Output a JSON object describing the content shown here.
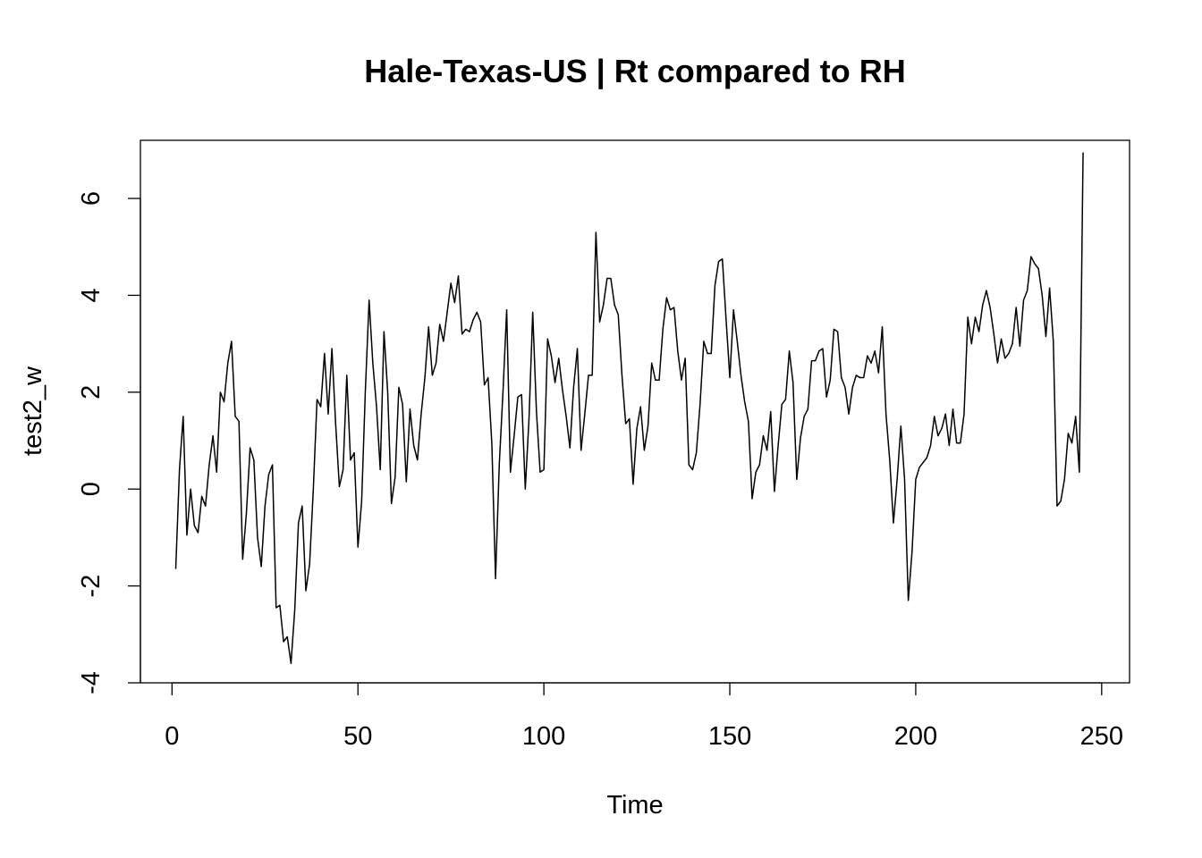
{
  "chart_data": {
    "type": "line",
    "title": "Hale-Texas-US | Rt compared to RH",
    "xlabel": "Time",
    "ylabel": "test2_w",
    "xlim": [
      -8.5,
      257.5
    ],
    "ylim": [
      -4,
      7.2
    ],
    "xticks": [
      0,
      50,
      100,
      150,
      200,
      250
    ],
    "yticks": [
      -4,
      -2,
      0,
      2,
      4,
      6
    ],
    "grid": false,
    "series": [
      {
        "x_start": 1,
        "x_step": 1,
        "values": [
          -1.65,
          0.4,
          1.5,
          -0.95,
          0.0,
          -0.75,
          -0.9,
          -0.15,
          -0.35,
          0.5,
          1.1,
          0.35,
          2.0,
          1.8,
          2.6,
          3.05,
          1.5,
          1.4,
          -1.45,
          -0.5,
          0.85,
          0.6,
          -1.0,
          -1.6,
          -0.35,
          0.3,
          0.5,
          -2.45,
          -2.4,
          -3.15,
          -3.05,
          -3.6,
          -2.5,
          -0.7,
          -0.35,
          -2.1,
          -1.55,
          0.0,
          1.85,
          1.7,
          2.8,
          1.55,
          2.9,
          1.35,
          0.05,
          0.4,
          2.35,
          0.6,
          0.75,
          -1.2,
          -0.25,
          2.05,
          3.9,
          2.6,
          1.7,
          0.4,
          3.25,
          2.0,
          -0.3,
          0.25,
          2.1,
          1.75,
          0.15,
          1.65,
          0.9,
          0.6,
          1.55,
          2.3,
          3.35,
          2.35,
          2.6,
          3.4,
          3.05,
          3.65,
          4.25,
          3.85,
          4.4,
          3.2,
          3.3,
          3.25,
          3.5,
          3.65,
          3.45,
          2.15,
          2.3,
          0.95,
          -1.85,
          0.5,
          2.0,
          3.7,
          0.35,
          1.1,
          1.9,
          1.95,
          0.0,
          1.45,
          3.65,
          1.6,
          0.35,
          0.4,
          3.1,
          2.75,
          2.2,
          2.7,
          2.05,
          1.5,
          0.85,
          2.1,
          2.9,
          0.8,
          1.55,
          2.35,
          2.35,
          5.3,
          3.45,
          3.8,
          4.35,
          4.35,
          3.8,
          3.6,
          2.35,
          1.35,
          1.45,
          0.1,
          1.25,
          1.7,
          0.8,
          1.3,
          2.6,
          2.25,
          2.25,
          3.3,
          3.95,
          3.7,
          3.75,
          2.85,
          2.25,
          2.7,
          0.5,
          0.4,
          0.75,
          1.75,
          3.05,
          2.8,
          2.8,
          4.2,
          4.7,
          4.75,
          3.5,
          2.3,
          3.7,
          3.05,
          2.35,
          1.8,
          1.4,
          -0.2,
          0.35,
          0.5,
          1.1,
          0.8,
          1.6,
          -0.05,
          0.9,
          1.75,
          1.85,
          2.85,
          2.2,
          0.2,
          1.05,
          1.5,
          1.65,
          2.65,
          2.65,
          2.85,
          2.9,
          1.9,
          2.25,
          3.3,
          3.25,
          2.3,
          2.1,
          1.55,
          2.1,
          2.35,
          2.3,
          2.3,
          2.75,
          2.6,
          2.85,
          2.4,
          3.35,
          1.55,
          0.6,
          -0.7,
          0.2,
          1.3,
          0.2,
          -2.3,
          -1.3,
          0.2,
          0.45,
          0.55,
          0.65,
          0.9,
          1.5,
          1.1,
          1.25,
          1.55,
          0.9,
          1.65,
          0.95,
          0.95,
          1.55,
          3.55,
          3.0,
          3.55,
          3.25,
          3.8,
          4.1,
          3.75,
          3.2,
          2.6,
          3.1,
          2.7,
          2.8,
          3.0,
          3.75,
          2.95,
          3.9,
          4.1,
          4.8,
          4.65,
          4.55,
          4.0,
          3.15,
          4.15,
          3.05,
          -0.35,
          -0.25,
          0.2,
          1.15,
          0.95,
          1.5,
          0.35,
          6.95
        ]
      }
    ]
  }
}
